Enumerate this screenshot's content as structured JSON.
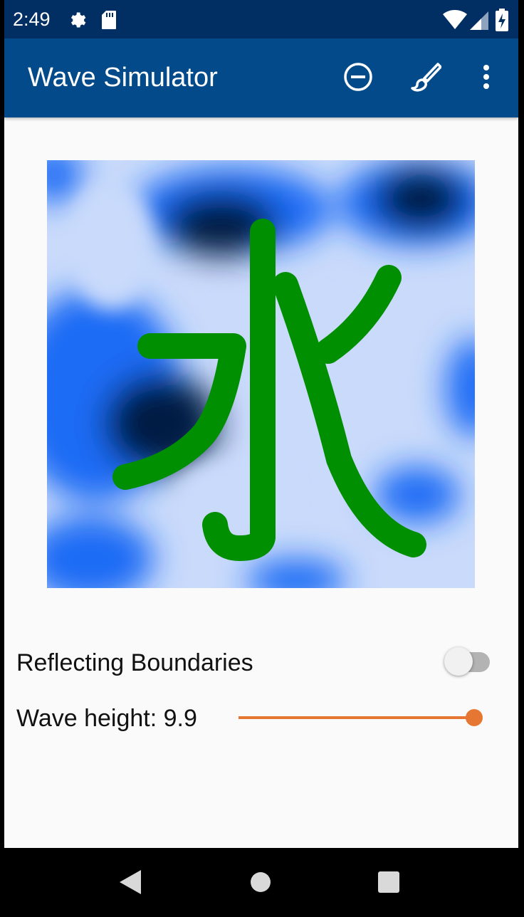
{
  "status_bar": {
    "time": "2:49",
    "icons": [
      "gear-icon",
      "sd-card-icon",
      "wifi-icon",
      "signal-icon",
      "battery-charging-icon"
    ]
  },
  "app_bar": {
    "title": "Wave Simulator",
    "actions": [
      "remove-circle-icon",
      "brush-icon",
      "more-vert-icon"
    ]
  },
  "simulation": {
    "colors": {
      "light": "#c9dafb",
      "mid": "#1a6cf5",
      "dark": "#021a44",
      "drawing": "#008f00"
    }
  },
  "controls": {
    "reflecting_boundaries": {
      "label": "Reflecting Boundaries",
      "enabled": false
    },
    "wave_height": {
      "label": "Wave height: 9.9",
      "fraction": 1.0
    },
    "accent_color": "#e57732"
  },
  "nav_bar": {
    "buttons": [
      "back-icon",
      "home-icon",
      "recents-icon"
    ]
  }
}
